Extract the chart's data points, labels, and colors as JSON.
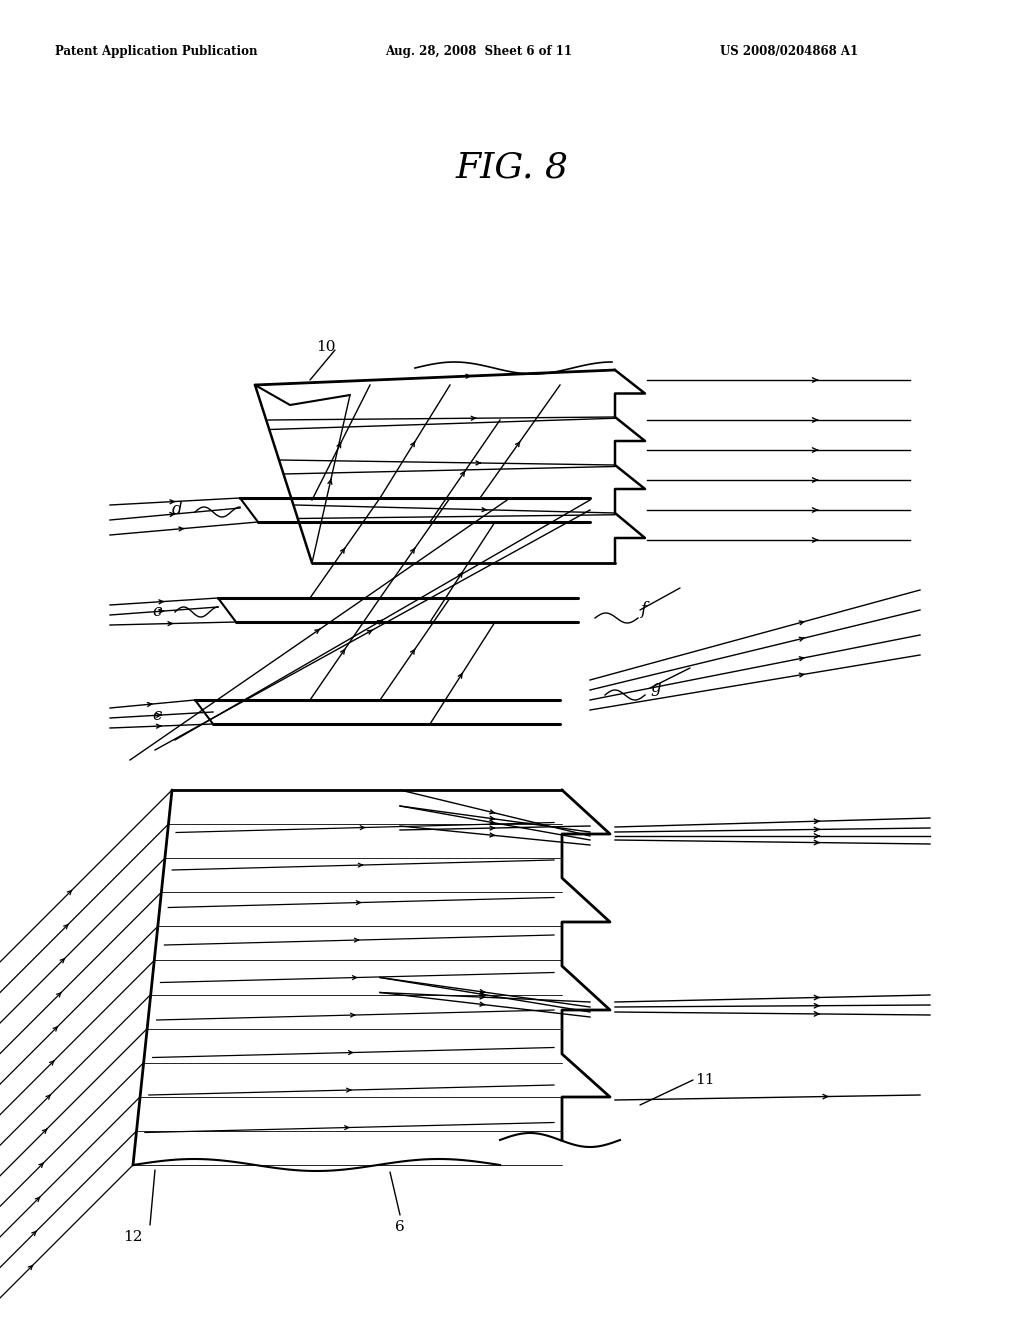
{
  "title": "FIG. 8",
  "header_left": "Patent Application Publication",
  "header_mid": "Aug. 28, 2008  Sheet 6 of 11",
  "header_right": "US 2008/0204868 A1",
  "bg_color": "#ffffff",
  "lc": "#000000",
  "fig_width": 10.24,
  "fig_height": 13.2
}
